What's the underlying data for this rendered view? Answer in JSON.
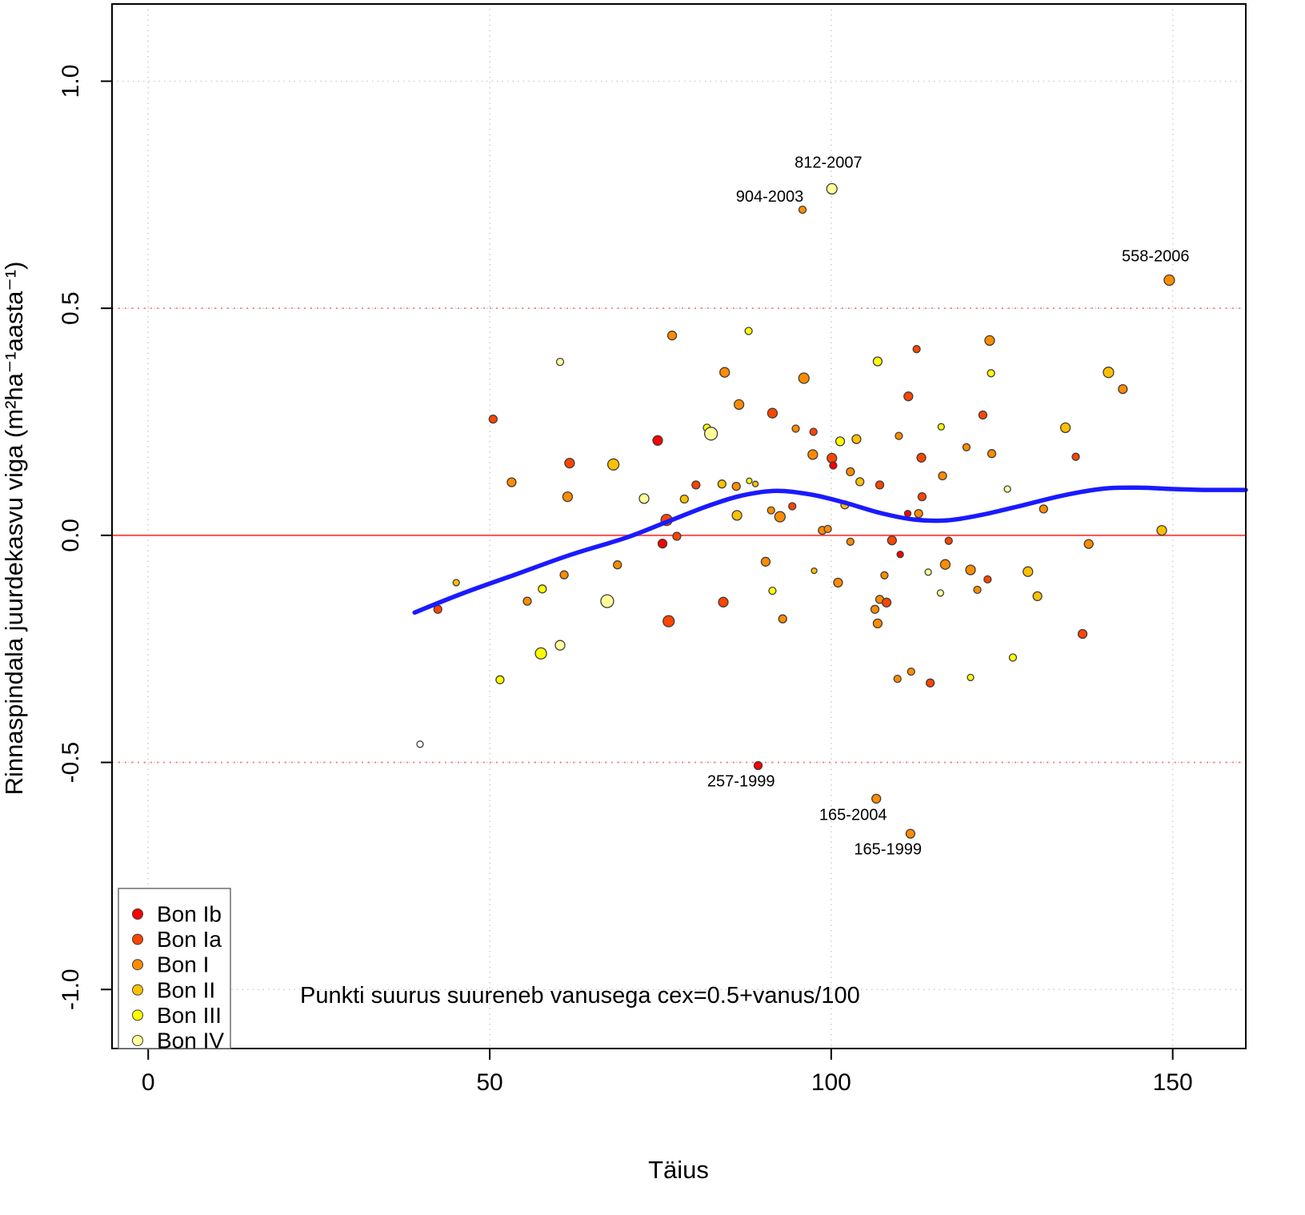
{
  "chart_data": {
    "type": "scatter",
    "title": "",
    "xlabel": "Täius",
    "ylabel": "Rinnaspindala juurdekasvu viga  (m²ha⁻¹aasta⁻¹)",
    "caption": "Punkti suurus suureneb vanusega cex=0.5+vanus/100",
    "xlim": [
      -5.3,
      160.7
    ],
    "ylim": [
      -1.13,
      1.17
    ],
    "x_ticks": [
      0,
      50,
      100,
      150
    ],
    "x_tick_labels": [
      "0",
      "50",
      "100",
      "150"
    ],
    "y_ticks": [
      -1.0,
      -0.5,
      0.0,
      0.5,
      1.0
    ],
    "y_tick_labels": [
      "-1.0",
      "-0.5",
      "0.0",
      "0.5",
      "1.0"
    ],
    "grid": {
      "show": true,
      "color": "#CFCFCF",
      "style": "dotted"
    },
    "reference_lines": [
      {
        "y": 0.0,
        "style": "solid",
        "color": "#FF5050"
      },
      {
        "y": 0.5,
        "style": "dashed",
        "color": "#FF8080"
      },
      {
        "y": -0.5,
        "style": "dashed",
        "color": "#FF8080"
      }
    ],
    "smooth_line": {
      "name": "loess-fit",
      "color": "#1A1AFF",
      "width": 5.5,
      "points": [
        [
          39,
          -0.17
        ],
        [
          46,
          -0.128
        ],
        [
          54,
          -0.085
        ],
        [
          62,
          -0.042
        ],
        [
          70,
          -0.005
        ],
        [
          76,
          0.03
        ],
        [
          82,
          0.065
        ],
        [
          87,
          0.088
        ],
        [
          92,
          0.098
        ],
        [
          97,
          0.09
        ],
        [
          102,
          0.072
        ],
        [
          107,
          0.05
        ],
        [
          112,
          0.035
        ],
        [
          117,
          0.033
        ],
        [
          122,
          0.045
        ],
        [
          128,
          0.066
        ],
        [
          134,
          0.088
        ],
        [
          140,
          0.103
        ],
        [
          145,
          0.105
        ],
        [
          150,
          0.102
        ],
        [
          155,
          0.1
        ],
        [
          160.7,
          0.1
        ]
      ]
    },
    "legend": {
      "position": "bottom-left",
      "items": [
        {
          "label": "Bon Ib",
          "color": "#FF0000"
        },
        {
          "label": "Bon Ia",
          "color": "#FF4500"
        },
        {
          "label": "Bon I",
          "color": "#FF8C00"
        },
        {
          "label": "Bon II",
          "color": "#FFC000"
        },
        {
          "label": "Bon III",
          "color": "#FFFF00"
        },
        {
          "label": "Bon IV",
          "color": "#FFFF99"
        }
      ]
    },
    "open_point_color": "#FFFFFF",
    "point_format": "[taius, viga, bon_class_index (-1 = open/white), radius_px]",
    "points": [
      [
        39.8,
        -0.46,
        -1,
        4
      ],
      [
        42.4,
        -0.163,
        1,
        5
      ],
      [
        45.1,
        -0.104,
        3,
        4
      ],
      [
        50.5,
        0.256,
        1,
        5
      ],
      [
        53.2,
        0.117,
        2,
        5.5
      ],
      [
        51.5,
        -0.318,
        4,
        5
      ],
      [
        55.5,
        -0.145,
        2,
        5
      ],
      [
        57.5,
        -0.26,
        4,
        7
      ],
      [
        57.7,
        -0.118,
        4,
        5
      ],
      [
        60.3,
        -0.242,
        5,
        6
      ],
      [
        60.3,
        0.382,
        5,
        4.5
      ],
      [
        61.7,
        0.159,
        1,
        6
      ],
      [
        60.9,
        -0.087,
        2,
        5
      ],
      [
        61.4,
        0.085,
        2,
        6
      ],
      [
        68.1,
        0.156,
        3,
        7
      ],
      [
        67.2,
        -0.145,
        5,
        8
      ],
      [
        68.7,
        -0.065,
        2,
        5
      ],
      [
        72.6,
        0.081,
        5,
        6
      ],
      [
        74.6,
        0.209,
        0,
        6
      ],
      [
        75.3,
        -0.018,
        0,
        5.5
      ],
      [
        75.9,
        0.034,
        1,
        7
      ],
      [
        76.2,
        -0.189,
        1,
        7
      ],
      [
        76.7,
        0.44,
        2,
        5.5
      ],
      [
        77.4,
        -0.002,
        1,
        5
      ],
      [
        78.5,
        0.08,
        3,
        5
      ],
      [
        80.2,
        0.111,
        1,
        5
      ],
      [
        81.8,
        0.237,
        4,
        4.5
      ],
      [
        82.4,
        0.224,
        5,
        8
      ],
      [
        84.0,
        0.113,
        3,
        5
      ],
      [
        84.2,
        -0.147,
        1,
        6
      ],
      [
        84.4,
        0.359,
        2,
        6
      ],
      [
        86.1,
        0.108,
        2,
        5
      ],
      [
        86.2,
        0.044,
        3,
        6
      ],
      [
        86.5,
        0.288,
        2,
        6
      ],
      [
        87.9,
        0.45,
        4,
        4.5
      ],
      [
        88.0,
        0.12,
        4,
        3.5
      ],
      [
        88.9,
        0.113,
        3,
        3.5
      ],
      [
        89.3,
        -0.507,
        0,
        5
      ],
      [
        90.4,
        -0.058,
        2,
        5.5
      ],
      [
        91.2,
        0.055,
        2,
        4.5
      ],
      [
        91.4,
        0.269,
        1,
        6
      ],
      [
        91.4,
        -0.122,
        4,
        4.5
      ],
      [
        92.5,
        0.041,
        2,
        6.5
      ],
      [
        92.9,
        -0.184,
        2,
        5
      ],
      [
        94.3,
        0.064,
        1,
        4.5
      ],
      [
        94.8,
        0.235,
        2,
        4.5
      ],
      [
        95.8,
        0.717,
        2,
        4.5
      ],
      [
        96.0,
        0.346,
        2,
        6.5
      ],
      [
        97.3,
        0.178,
        2,
        6
      ],
      [
        97.4,
        0.228,
        1,
        4.5
      ],
      [
        97.5,
        -0.078,
        3,
        3.5
      ],
      [
        98.7,
        0.011,
        2,
        5
      ],
      [
        99.5,
        0.014,
        2,
        4.5
      ],
      [
        100.1,
        0.763,
        5,
        6.5
      ],
      [
        100.1,
        0.17,
        1,
        6
      ],
      [
        100.3,
        0.154,
        0,
        4.5
      ],
      [
        101.0,
        -0.104,
        2,
        5.5
      ],
      [
        101.3,
        0.207,
        4,
        5.5
      ],
      [
        102.0,
        0.067,
        3,
        5
      ],
      [
        102.8,
        0.14,
        2,
        5
      ],
      [
        102.8,
        -0.014,
        2,
        4.5
      ],
      [
        103.7,
        0.212,
        3,
        5.5
      ],
      [
        104.2,
        0.118,
        3,
        5
      ],
      [
        106.4,
        -0.163,
        2,
        5
      ],
      [
        106.6,
        -0.58,
        2,
        5.5
      ],
      [
        106.8,
        0.383,
        4,
        5.5
      ],
      [
        106.8,
        -0.194,
        2,
        5.5
      ],
      [
        107.1,
        0.111,
        1,
        5
      ],
      [
        107.1,
        -0.141,
        2,
        5
      ],
      [
        107.8,
        -0.088,
        2,
        4.5
      ],
      [
        108.1,
        -0.148,
        1,
        5.5
      ],
      [
        108.9,
        -0.011,
        1,
        5.5
      ],
      [
        109.7,
        -0.316,
        2,
        4.5
      ],
      [
        109.9,
        0.219,
        2,
        4.5
      ],
      [
        110.1,
        -0.042,
        0,
        4
      ],
      [
        111.2,
        0.048,
        0,
        4
      ],
      [
        111.3,
        0.306,
        1,
        5.5
      ],
      [
        111.6,
        -0.657,
        2,
        5.5
      ],
      [
        111.7,
        -0.3,
        2,
        4.5
      ],
      [
        112.5,
        0.41,
        1,
        4.5
      ],
      [
        112.8,
        0.048,
        2,
        5
      ],
      [
        113.2,
        0.171,
        1,
        5.5
      ],
      [
        113.3,
        0.085,
        1,
        5
      ],
      [
        114.2,
        -0.081,
        5,
        4
      ],
      [
        114.5,
        -0.325,
        1,
        5
      ],
      [
        116.0,
        -0.127,
        5,
        4
      ],
      [
        116.1,
        0.239,
        4,
        4
      ],
      [
        116.3,
        0.131,
        2,
        5
      ],
      [
        116.7,
        -0.064,
        2,
        6
      ],
      [
        117.2,
        -0.012,
        1,
        4.5
      ],
      [
        119.8,
        0.194,
        2,
        4.5
      ],
      [
        120.4,
        -0.076,
        2,
        6
      ],
      [
        120.4,
        -0.313,
        4,
        4
      ],
      [
        121.4,
        -0.12,
        2,
        4.5
      ],
      [
        122.2,
        0.265,
        1,
        5
      ],
      [
        122.9,
        -0.097,
        1,
        4.5
      ],
      [
        123.2,
        0.429,
        2,
        6
      ],
      [
        123.4,
        0.357,
        4,
        4.5
      ],
      [
        123.5,
        0.18,
        2,
        5
      ],
      [
        125.8,
        0.102,
        5,
        4
      ],
      [
        126.6,
        -0.269,
        4,
        4.5
      ],
      [
        128.8,
        -0.08,
        3,
        6
      ],
      [
        130.2,
        -0.134,
        3,
        5.5
      ],
      [
        131.1,
        0.058,
        2,
        5
      ],
      [
        134.3,
        0.237,
        3,
        6
      ],
      [
        135.8,
        0.173,
        1,
        4.5
      ],
      [
        136.8,
        -0.217,
        1,
        5.5
      ],
      [
        137.7,
        -0.019,
        2,
        5.5
      ],
      [
        140.6,
        0.359,
        3,
        6.5
      ],
      [
        142.7,
        0.322,
        2,
        5.5
      ],
      [
        148.4,
        0.011,
        3,
        6
      ],
      [
        149.5,
        0.562,
        2,
        6.5
      ]
    ],
    "point_labels": [
      {
        "text": "812-2007",
        "x": 99.6,
        "y": 0.81
      },
      {
        "text": "904-2003",
        "x": 91.0,
        "y": 0.735
      },
      {
        "text": "558-2006",
        "x": 147.5,
        "y": 0.603
      },
      {
        "text": "257-1999",
        "x": 86.8,
        "y": -0.553
      },
      {
        "text": "165-2004",
        "x": 103.2,
        "y": -0.627
      },
      {
        "text": "165-1999",
        "x": 108.3,
        "y": -0.703
      }
    ]
  }
}
